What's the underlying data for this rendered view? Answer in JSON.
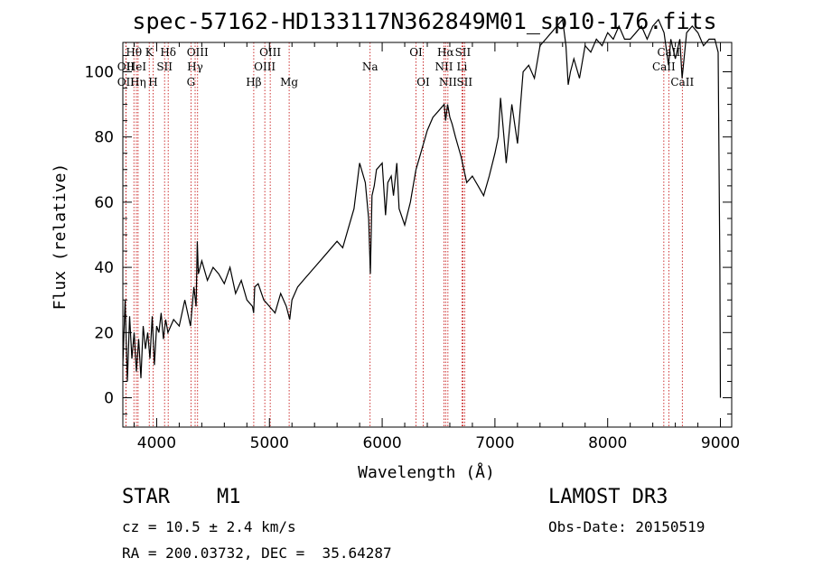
{
  "chart_data": {
    "type": "line",
    "title": "spec-57162-HD133117N362849M01_sp10-176.fits",
    "xlabel": "Wavelength (Å)",
    "ylabel": "Flux (relative)",
    "xlim": [
      3700,
      9100
    ],
    "ylim": [
      -9,
      109
    ],
    "x_ticks": [
      4000,
      5000,
      6000,
      7000,
      8000,
      9000
    ],
    "x_tick_labels": [
      "4000",
      "5000",
      "6000",
      "7000",
      "8000",
      "9000"
    ],
    "y_ticks": [
      0,
      20,
      40,
      60,
      80,
      100
    ],
    "y_tick_labels": [
      "0",
      "20",
      "40",
      "60",
      "80",
      "100"
    ],
    "series": [
      {
        "name": "spectrum",
        "x": [
          3700,
          3720,
          3740,
          3760,
          3780,
          3800,
          3820,
          3840,
          3860,
          3880,
          3900,
          3920,
          3940,
          3960,
          3980,
          4000,
          4020,
          4040,
          4060,
          4080,
          4100,
          4150,
          4200,
          4250,
          4300,
          4330,
          4350,
          4360,
          4370,
          4400,
          4450,
          4500,
          4550,
          4600,
          4650,
          4700,
          4750,
          4800,
          4850,
          4860,
          4870,
          4900,
          4950,
          5000,
          5050,
          5100,
          5150,
          5180,
          5200,
          5250,
          5300,
          5400,
          5500,
          5600,
          5650,
          5700,
          5750,
          5800,
          5850,
          5880,
          5895,
          5910,
          5930,
          5950,
          6000,
          6030,
          6050,
          6080,
          6100,
          6130,
          6150,
          6200,
          6250,
          6280,
          6300,
          6350,
          6400,
          6450,
          6500,
          6550,
          6563,
          6580,
          6600,
          6620,
          6650,
          6700,
          6750,
          6800,
          6850,
          6900,
          6950,
          7000,
          7030,
          7050,
          7100,
          7150,
          7200,
          7250,
          7300,
          7350,
          7400,
          7450,
          7500,
          7550,
          7600,
          7630,
          7650,
          7670,
          7700,
          7750,
          7800,
          7850,
          7900,
          7950,
          8000,
          8050,
          8100,
          8150,
          8200,
          8250,
          8300,
          8350,
          8400,
          8450,
          8500,
          8540,
          8560,
          8600,
          8640,
          8660,
          8700,
          8750,
          8800,
          8850,
          8900,
          8950,
          8980,
          8995,
          9000
        ],
        "y": [
          10,
          30,
          5,
          25,
          12,
          20,
          8,
          18,
          6,
          22,
          15,
          20,
          12,
          25,
          10,
          22,
          20,
          26,
          18,
          24,
          20,
          24,
          22,
          30,
          22,
          34,
          28,
          48,
          38,
          42,
          36,
          40,
          38,
          35,
          40,
          32,
          36,
          30,
          28,
          26,
          34,
          35,
          30,
          28,
          26,
          32,
          28,
          24,
          30,
          34,
          36,
          40,
          44,
          48,
          46,
          52,
          58,
          72,
          66,
          55,
          38,
          62,
          65,
          70,
          72,
          56,
          66,
          68,
          62,
          72,
          58,
          53,
          60,
          66,
          70,
          76,
          82,
          86,
          88,
          90,
          85,
          90,
          86,
          84,
          80,
          74,
          66,
          68,
          65,
          62,
          68,
          75,
          80,
          92,
          72,
          90,
          78,
          100,
          102,
          98,
          108,
          110,
          112,
          114,
          116,
          108,
          96,
          100,
          104,
          98,
          108,
          106,
          110,
          108,
          112,
          110,
          114,
          110,
          110,
          112,
          114,
          110,
          114,
          116,
          112,
          102,
          110,
          104,
          110,
          98,
          112,
          114,
          112,
          108,
          110,
          110,
          106,
          40,
          0
        ]
      }
    ],
    "spectral_lines": [
      {
        "label": "Hθ",
        "wl": 3798,
        "row": 1
      },
      {
        "label": "OII",
        "wl": 3727,
        "row": 2
      },
      {
        "label": "OII",
        "wl": 3727,
        "row": 3
      },
      {
        "label": "HeI",
        "wl": 3820,
        "row": 2
      },
      {
        "label": "Hη",
        "wl": 3835,
        "row": 3
      },
      {
        "label": "K",
        "wl": 3934,
        "row": 1
      },
      {
        "label": "SII",
        "wl": 4070,
        "row": 2
      },
      {
        "label": "H",
        "wl": 3968,
        "row": 3
      },
      {
        "label": "Hδ",
        "wl": 4102,
        "row": 1
      },
      {
        "label": "OIII",
        "wl": 4363,
        "row": 1
      },
      {
        "label": "Hγ",
        "wl": 4341,
        "row": 2
      },
      {
        "label": "G",
        "wl": 4304,
        "row": 3
      },
      {
        "label": "OIII",
        "wl": 5007,
        "row": 1
      },
      {
        "label": "OIII",
        "wl": 4959,
        "row": 2
      },
      {
        "label": "Hβ",
        "wl": 4861,
        "row": 3
      },
      {
        "label": "Mg",
        "wl": 5175,
        "row": 3
      },
      {
        "label": "Na",
        "wl": 5893,
        "row": 2
      },
      {
        "label": "OI",
        "wl": 6300,
        "row": 1
      },
      {
        "label": "OI",
        "wl": 6364,
        "row": 3
      },
      {
        "label": "Hα",
        "wl": 6563,
        "row": 1
      },
      {
        "label": "NII",
        "wl": 6548,
        "row": 2
      },
      {
        "label": "NII",
        "wl": 6583,
        "row": 3
      },
      {
        "label": "SII",
        "wl": 6716,
        "row": 1
      },
      {
        "label": "Li",
        "wl": 6708,
        "row": 2
      },
      {
        "label": "SII",
        "wl": 6731,
        "row": 3
      },
      {
        "label": "CaII",
        "wl": 8542,
        "row": 1
      },
      {
        "label": "CaII",
        "wl": 8498,
        "row": 2
      },
      {
        "label": "CaII",
        "wl": 8662,
        "row": 3
      }
    ]
  },
  "info": {
    "object_class": "STAR",
    "subclass": "M1",
    "survey": "LAMOST DR3",
    "cz": "cz = 10.5 ± 2.4 km/s",
    "obs_date": "Obs-Date: 20150519",
    "coords": "RA = 200.03732, DEC =  35.64287"
  },
  "colors": {
    "spectrum": "#000000",
    "line_marker": "#c00000",
    "axes": "#000000"
  }
}
